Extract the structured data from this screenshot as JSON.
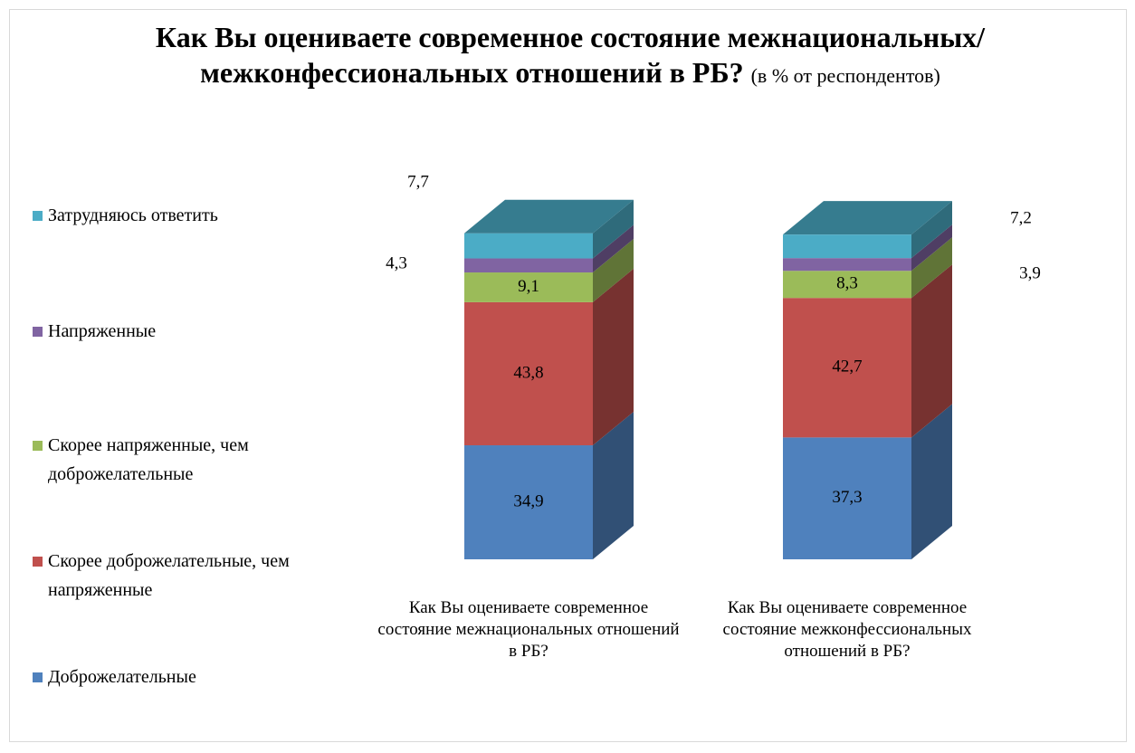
{
  "chart_data": {
    "type": "bar3d_stacked",
    "title": "Как Вы оцениваете современное состояние межнациональных/межконфессиональных отношений в РБ?",
    "subtitle": "(в % от респондентов)",
    "categories": [
      "Как Вы оцениваете современное состояние межнациональных отношений в РБ?",
      "Как Вы оцениваете современное состояние межконфессиональных отношений в РБ?"
    ],
    "ylim": [
      0,
      100
    ],
    "legend": "left",
    "series": [
      {
        "name": "Доброжелательные",
        "color": "#4f81bd",
        "values": [
          34.9,
          37.3
        ],
        "value_labels": [
          "34,9",
          "37,3"
        ]
      },
      {
        "name": "Скорее доброжелательные, чем напряженные",
        "color": "#c0504d",
        "values": [
          43.8,
          42.7
        ],
        "value_labels": [
          "43,8",
          "42,7"
        ]
      },
      {
        "name": "Скорее напряженные, чем доброжелательные",
        "color": "#9bbb59",
        "values": [
          9.1,
          8.3
        ],
        "value_labels": [
          "9,1",
          "8,3"
        ]
      },
      {
        "name": "Напряженные",
        "color": "#8064a2",
        "values": [
          4.3,
          3.9
        ],
        "value_labels": [
          "4,3",
          "3,9"
        ]
      },
      {
        "name": "Затрудняюсь ответить",
        "color": "#4bacc6",
        "values": [
          7.7,
          7.2
        ],
        "value_labels": [
          "7,7",
          "7,2"
        ]
      }
    ]
  }
}
